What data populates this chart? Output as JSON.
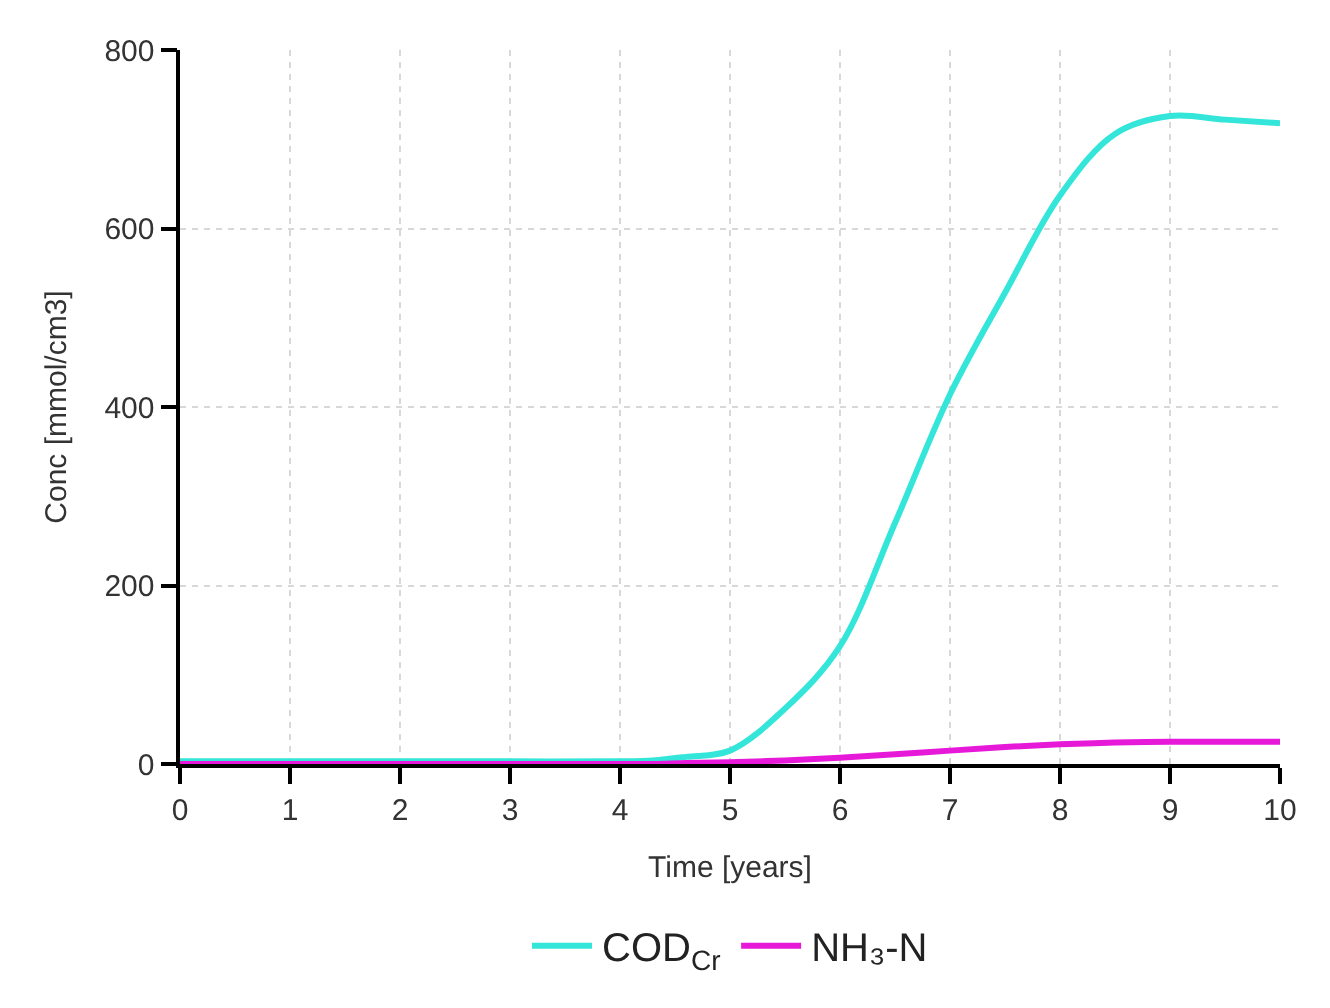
{
  "chart_data": {
    "type": "line",
    "xlabel": "Time [years]",
    "ylabel": "Conc [mmol/cm3]",
    "x": [
      0,
      1,
      2,
      3,
      4,
      4.3,
      4.6,
      5,
      5.5,
      6,
      6.5,
      7,
      7.5,
      8,
      8.5,
      9,
      9.5,
      10
    ],
    "series": [
      {
        "name": "COD$_{Cr}$",
        "color": "#33e6d9",
        "values": [
          3,
          3,
          3,
          3,
          3,
          4,
          8,
          15,
          62,
          132,
          270,
          414,
          528,
          637,
          706,
          726,
          722,
          718
        ]
      },
      {
        "name": "NH₃-N",
        "color": "#e619d9",
        "values": [
          0,
          0,
          0,
          0,
          0,
          0,
          1,
          2,
          4,
          7,
          11,
          15,
          19,
          22,
          24,
          25,
          25,
          25
        ]
      }
    ],
    "xlim": [
      0,
      10
    ],
    "ylim": [
      0,
      800
    ],
    "xticks": [
      0,
      1,
      2,
      3,
      4,
      5,
      6,
      7,
      8,
      9,
      10
    ],
    "yticks": [
      0,
      200,
      400,
      600,
      800
    ],
    "grid": true,
    "legend": "bottom",
    "marker": "none",
    "line_style": "solid"
  }
}
